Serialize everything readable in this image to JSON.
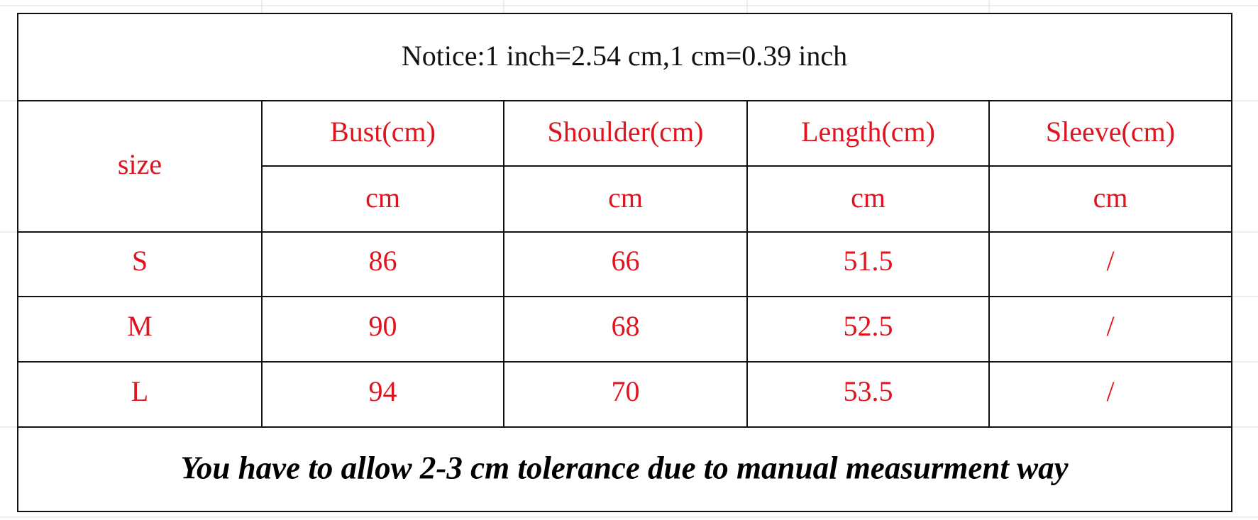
{
  "notice": "Notice:1 inch=2.54 cm,1 cm=0.39 inch",
  "table": {
    "size_label": "size",
    "columns": [
      "Bust(cm)",
      "Shoulder(cm)",
      "Length(cm)",
      "Sleeve(cm)"
    ],
    "units": [
      "cm",
      "cm",
      "cm",
      "cm"
    ],
    "rows": [
      [
        "S",
        "86",
        "66",
        "51.5",
        "/"
      ],
      [
        "M",
        "90",
        "68",
        "52.5",
        "/"
      ],
      [
        "L",
        "94",
        "70",
        "53.5",
        "/"
      ]
    ]
  },
  "footer": "You have to allow 2-3 cm tolerance due to manual measurment way"
}
